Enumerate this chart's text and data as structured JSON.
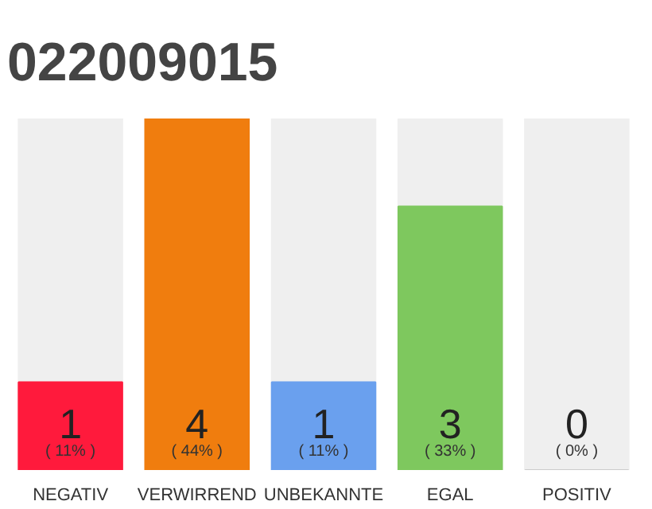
{
  "chart_data": {
    "type": "bar",
    "title": "022009015",
    "categories": [
      "NEGATIV",
      "VERWIRREND",
      "UNBEKANNTE",
      "EGAL",
      "POSITIV"
    ],
    "values": [
      1,
      4,
      1,
      3,
      0
    ],
    "colors": [
      "#ff1a3c",
      "#f07d0e",
      "#6aa0ee",
      "#7ec85e",
      "#cccccc"
    ],
    "ylim": [
      0,
      4
    ],
    "data_labels": true,
    "grid": false,
    "tick_labels": "x",
    "annotations": [
      "( 11% )",
      "( 44% )",
      "( 11% )",
      "( 33% )",
      "( 0% )"
    ]
  }
}
